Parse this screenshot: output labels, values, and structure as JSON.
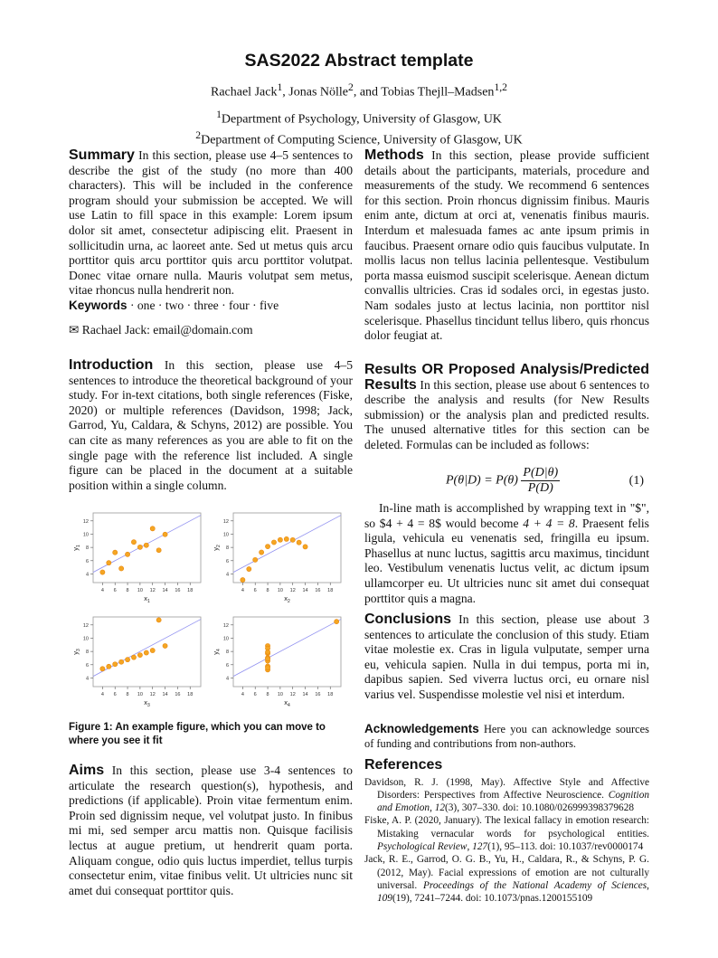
{
  "title": "SAS2022 Abstract template",
  "authors": {
    "a1": "Rachael Jack",
    "s1": "1",
    "a2": "Jonas Nölle",
    "s2": "2",
    "a3": "Tobias Thejll–Madsen",
    "s3": "1,2",
    "sep1": ", ",
    "sep2": ", and "
  },
  "affiliations": [
    {
      "sup": "1",
      "text": "Department of Psychology, University of Glasgow, UK"
    },
    {
      "sup": "2",
      "text": "Department of Computing Science, University of Glasgow, UK"
    }
  ],
  "summary": {
    "heading": "Summary",
    "body": "In this section, please use 4–5 sentences to describe the gist of the study (no more than 400 characters). This will be included in the conference program should your submission be accepted. We will use Latin to fill space in this example: Lorem ipsum dolor sit amet, consectetur adipiscing elit. Praesent in sollicitudin urna, ac laoreet ante. Sed ut metus quis arcu porttitor quis arcu porttitor quis arcu porttitor volutpat. Donec vitae ornare nulla. Mauris volutpat sem metus, vitae rhoncus nulla hendrerit non.",
    "keywords_label": "Keywords",
    "keywords": "· one · two · three · four · five"
  },
  "contact": {
    "icon": "envelope-icon",
    "symbol": "✉",
    "text": "Rachael Jack: email@domain.com"
  },
  "introduction": {
    "heading": "Introduction",
    "body": "In this section, please use 4–5 sentences to introduce the theoretical background of your study. For in-text citations, both single references (Fiske, 2020) or multiple references (Davidson, 1998; Jack, Garrod, Yu, Caldara, & Schyns, 2012) are possible. You can cite as many references as you are able to fit on the single page with the reference list included. A single figure can be placed in the document at a suitable position within a single column."
  },
  "figure": {
    "caption": "Figure 1: An example figure, which you can move to where you see it fit"
  },
  "aims": {
    "heading": "Aims",
    "body": "In this section, please use 3-4 sentences to articulate the research question(s), hypothesis, and predictions (if applicable). Proin vitae fermentum enim. Proin sed dignissim neque, vel volutpat justo. In finibus mi mi, sed semper arcu mattis non. Quisque facilisis lectus at augue pretium, ut hendrerit quam porta. Aliquam congue, odio quis luctus imperdiet, tellus turpis consectetur enim, vitae finibus velit. Ut ultricies nunc sit amet dui consequat porttitor quis."
  },
  "methods": {
    "heading": "Methods",
    "body": "In this section, please provide sufficient details about the participants, materials, procedure and measurements of the study. We recommend 6 sentences for this section. Proin rhoncus dignissim finibus. Mauris enim ante, dictum at orci at, venenatis finibus mauris. Interdum et malesuada fames ac ante ipsum primis in faucibus. Praesent ornare odio quis faucibus vulputate. In mollis lacus non tellus lacinia pellentesque. Vestibulum porta massa euismod suscipit scelerisque. Aenean dictum convallis ultricies. Cras id sodales orci, in egestas justo. Nam sodales justo at lectus lacinia, non porttitor nisl scelerisque. Phasellus tincidunt tellus libero, quis rhoncus dolor feugiat at."
  },
  "results": {
    "heading": "Results OR Proposed Analysis/Predicted Results",
    "body": "In this section, please use about 6 sentences to describe the analysis and results (for New Results submission) or the analysis plan and predicted results. The unused alternative titles for this section can be deleted. Formulas can be included as follows:",
    "equation": {
      "lhs": "P(θ|D) = P(θ)",
      "num": "P(D|θ)",
      "den": "P(D)",
      "number": "(1)"
    },
    "after_pre": "In-line math is accomplished by wrapping text in \"$\", so $4 + 4 = 8$ would become ",
    "inline_math": "4 + 4 = 8",
    "after_post": ". Praesent felis ligula, vehicula eu venenatis sed, fringilla eu ipsum. Phasellus at nunc luctus, sagittis arcu maximus, tincidunt leo. Vestibulum venenatis luctus velit, ac dictum ipsum ullamcorper eu. Ut ultricies nunc sit amet dui consequat porttitor quis a magna."
  },
  "conclusions": {
    "heading": "Conclusions",
    "body": "In this section, please use about 3 sentences to articulate the conclusion of this study. Etiam vitae molestie ex. Cras in ligula vulputate, semper urna eu, vehicula sapien. Nulla in dui tempus, porta mi in, dapibus sapien. Sed viverra luctus orci, eu ornare nisl varius vel. Suspendisse molestie vel nisi et interdum."
  },
  "acknowledgements": {
    "heading": "Acknowledgements",
    "body": "Here you can acknowledge sources of funding and contributions from non-authors."
  },
  "references": {
    "heading": "References",
    "items": [
      {
        "pre": "Davidson, R. J. (1998, May). Affective Style and Affective Disorders: Perspectives from Affective Neuroscience. ",
        "journal": "Cognition and Emotion",
        "vol": "12",
        "post": "(3), 307–330. doi: 10.1080/026999398379628"
      },
      {
        "pre": "Fiske, A. P. (2020, January). The lexical fallacy in emotion research: Mistaking vernacular words for psychological entities. ",
        "journal": "Psychological Review",
        "vol": "127",
        "post": "(1), 95–113. doi: 10.1037/rev0000174"
      },
      {
        "pre": "Jack, R. E., Garrod, O. G. B., Yu, H., Caldara, R., & Schyns, P. G. (2012, May). Facial expressions of emotion are not culturally universal. ",
        "journal": "Proceedings of the National Academy of Sciences",
        "vol": "109",
        "post": "(19), 7241–7244. doi: 10.1073/pnas.1200155109"
      }
    ]
  },
  "chart_data": [
    {
      "type": "scatter",
      "xlabel": "x1",
      "ylabel": "y1",
      "xticks": [
        4,
        6,
        8,
        10,
        12,
        14,
        16,
        18
      ],
      "yticks": [
        4,
        6,
        8,
        10,
        12
      ],
      "xlim": [
        2.5,
        19.7
      ],
      "ylim": [
        2.7,
        13.2
      ],
      "grid": false,
      "fit_line": {
        "intercept": 3,
        "slope": 0.5
      },
      "x": [
        10,
        8,
        13,
        9,
        11,
        14,
        6,
        4,
        12,
        7,
        5
      ],
      "y": [
        8.04,
        6.95,
        7.58,
        8.81,
        8.33,
        9.96,
        7.24,
        4.26,
        10.84,
        4.82,
        5.68
      ]
    },
    {
      "type": "scatter",
      "xlabel": "x2",
      "ylabel": "y2",
      "xticks": [
        4,
        6,
        8,
        10,
        12,
        14,
        16,
        18
      ],
      "yticks": [
        4,
        6,
        8,
        10,
        12
      ],
      "xlim": [
        2.5,
        19.7
      ],
      "ylim": [
        2.7,
        13.2
      ],
      "grid": false,
      "fit_line": {
        "intercept": 3,
        "slope": 0.5
      },
      "x": [
        10,
        8,
        13,
        9,
        11,
        14,
        6,
        4,
        12,
        7,
        5
      ],
      "y": [
        9.14,
        8.14,
        8.74,
        8.77,
        9.26,
        8.1,
        6.13,
        3.1,
        9.13,
        7.26,
        4.74
      ]
    },
    {
      "type": "scatter",
      "xlabel": "x3",
      "ylabel": "y3",
      "xticks": [
        4,
        6,
        8,
        10,
        12,
        14,
        16,
        18
      ],
      "yticks": [
        4,
        6,
        8,
        10,
        12
      ],
      "xlim": [
        2.5,
        19.7
      ],
      "ylim": [
        2.7,
        13.2
      ],
      "grid": false,
      "fit_line": {
        "intercept": 3,
        "slope": 0.5
      },
      "x": [
        10,
        8,
        13,
        9,
        11,
        14,
        6,
        4,
        12,
        7,
        5
      ],
      "y": [
        7.46,
        6.77,
        12.74,
        7.11,
        7.81,
        8.84,
        6.08,
        5.39,
        8.15,
        6.42,
        5.73
      ]
    },
    {
      "type": "scatter",
      "xlabel": "x4",
      "ylabel": "y4",
      "xticks": [
        4,
        6,
        8,
        10,
        12,
        14,
        16,
        18
      ],
      "yticks": [
        4,
        6,
        8,
        10,
        12
      ],
      "xlim": [
        2.5,
        19.7
      ],
      "ylim": [
        2.7,
        13.2
      ],
      "grid": false,
      "fit_line": {
        "intercept": 3,
        "slope": 0.5
      },
      "x": [
        8,
        8,
        8,
        8,
        8,
        8,
        8,
        19,
        8,
        8,
        8
      ],
      "y": [
        6.58,
        5.76,
        7.71,
        8.84,
        8.47,
        7.04,
        5.25,
        12.5,
        5.56,
        7.91,
        6.89
      ]
    }
  ],
  "colors": {
    "point_fill": "#f5a623",
    "point_stroke": "#e8870e",
    "fit_line": "#8f8ff0",
    "frame": "#999999"
  }
}
